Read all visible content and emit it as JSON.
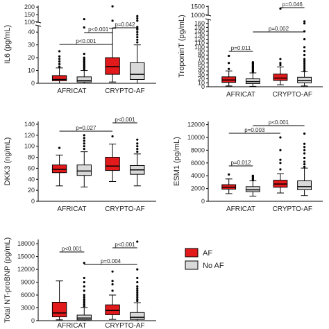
{
  "groups": [
    "AFRICAT",
    "CRYPTO-AF"
  ],
  "legend": {
    "items": [
      {
        "label": "AF",
        "color": "#e31a1c"
      },
      {
        "label": "No AF",
        "color": "#d9d9d9"
      }
    ]
  },
  "chart_data": [
    {
      "type": "box",
      "ylabel": "IL6 (pg/mL)",
      "categories": [
        "AFRICAT",
        "CRYPTO-AF"
      ],
      "yticks_lower": [
        0,
        10,
        20,
        30,
        40
      ],
      "yticks_upper": [
        100,
        150,
        200
      ],
      "axis_break": true,
      "ylim_lower": [
        0,
        45
      ],
      "ylim_upper": [
        100,
        210
      ],
      "series": [
        {
          "name": "AF",
          "boxes": [
            {
              "min": 0,
              "q1": 2,
              "median": 3,
              "q3": 6,
              "max": 12,
              "outliers": [
                13,
                15,
                17,
                19,
                21,
                25
              ]
            },
            {
              "min": 1,
              "q1": 7,
              "median": 13,
              "q3": 20,
              "max": 43,
              "outliers": [
                110,
                205
              ]
            }
          ]
        },
        {
          "name": "No AF",
          "boxes": [
            {
              "min": 0,
              "q1": 1,
              "median": 2,
              "q3": 5,
              "max": 10,
              "outliers": [
                11,
                12,
                13,
                14,
                15,
                16,
                17,
                18,
                19,
                20,
                23,
                65,
                120
              ]
            },
            {
              "min": 0,
              "q1": 3,
              "median": 7,
              "q3": 16,
              "max": 30,
              "outliers": [
                32,
                34,
                36,
                38,
                40,
                42,
                44,
                60,
                110,
                125,
                140
              ]
            }
          ]
        }
      ],
      "comparisons": [
        {
          "label": "p<0.001",
          "pair": "AFRICAT AF vs CRYPTO-AF AF"
        },
        {
          "label": "p<0.001",
          "pair": "AFRICAT No AF vs CRYPTO-AF AF"
        },
        {
          "label": "p=0.042",
          "pair": "CRYPTO-AF AF vs CRYPTO-AF No AF"
        }
      ]
    },
    {
      "type": "box",
      "ylabel": "TroponinT (pg/mL)",
      "categories": [
        "AFRICAT",
        "CRYPTO-AF"
      ],
      "yticks_lower": [
        0,
        10,
        20,
        30,
        40,
        50,
        60,
        70,
        80,
        90,
        100,
        110,
        120,
        130,
        140,
        150,
        160
      ],
      "yticks_upper": [
        1000,
        1500
      ],
      "axis_break": true,
      "ylim_lower": [
        0,
        170
      ],
      "ylim_upper": [
        1000,
        1550
      ],
      "series": [
        {
          "name": "AF",
          "boxes": [
            {
              "min": 2,
              "q1": 11,
              "median": 17,
              "q3": 25,
              "max": 40,
              "outliers": [
                45,
                60,
                78
              ]
            },
            {
              "min": 5,
              "q1": 16,
              "median": 22,
              "q3": 32,
              "max": 50,
              "outliers": [
                55,
                60,
                70,
                1380
              ]
            }
          ]
        },
        {
          "name": "No AF",
          "boxes": [
            {
              "min": 1,
              "q1": 8,
              "median": 13,
              "q3": 20,
              "max": 35,
              "outliers": [
                38,
                40,
                42,
                45,
                48,
                50,
                52,
                55,
                58,
                60,
                62
              ]
            },
            {
              "min": 2,
              "q1": 10,
              "median": 16,
              "q3": 24,
              "max": 38,
              "outliers": [
                40,
                45,
                50,
                55,
                60,
                65,
                70,
                80,
                90,
                100,
                120,
                140,
                160,
                165
              ]
            }
          ]
        }
      ],
      "comparisons": [
        {
          "label": "p=0.011",
          "pair": "AFRICAT AF vs AFRICAT No AF"
        },
        {
          "label": "p=0.002",
          "pair": "AFRICAT No AF vs CRYPTO-AF No AF"
        },
        {
          "label": "p=0.046",
          "pair": "CRYPTO-AF AF vs CRYPTO-AF No AF"
        }
      ]
    },
    {
      "type": "box",
      "ylabel": "DKK3 (ng/mL)",
      "categories": [
        "AFRICAT",
        "CRYPTO-AF"
      ],
      "yticks": [
        0,
        20,
        40,
        60,
        80,
        100,
        120,
        140
      ],
      "ylim": [
        0,
        145
      ],
      "series": [
        {
          "name": "AF",
          "boxes": [
            {
              "min": 28,
              "q1": 52,
              "median": 58,
              "q3": 66,
              "max": 84,
              "outliers": [
                97
              ]
            },
            {
              "min": 36,
              "q1": 56,
              "median": 64,
              "q3": 80,
              "max": 104,
              "outliers": [
                118
              ]
            }
          ]
        },
        {
          "name": "No AF",
          "boxes": [
            {
              "min": 26,
              "q1": 47,
              "median": 55,
              "q3": 66,
              "max": 90,
              "outliers": [
                95,
                100,
                105,
                110,
                115,
                120
              ]
            },
            {
              "min": 28,
              "q1": 49,
              "median": 57,
              "q3": 65,
              "max": 86,
              "outliers": [
                90,
                95,
                100,
                105,
                112
              ]
            }
          ]
        }
      ],
      "comparisons": [
        {
          "label": "p=0.027",
          "pair": "AFRICAT AF vs CRYPTO-AF AF"
        },
        {
          "label": "p<0.001",
          "pair": "CRYPTO-AF AF vs CRYPTO-AF No AF"
        }
      ]
    },
    {
      "type": "box",
      "ylabel": "ESM1 (pg/mL)",
      "categories": [
        "AFRICAT",
        "CRYPTO-AF"
      ],
      "yticks": [
        0,
        2000,
        4000,
        6000,
        8000,
        10000,
        12000
      ],
      "ylim": [
        0,
        12500
      ],
      "series": [
        {
          "name": "AF",
          "boxes": [
            {
              "min": 1200,
              "q1": 1900,
              "median": 2200,
              "q3": 2600,
              "max": 3500,
              "outliers": [
                4200
              ]
            },
            {
              "min": 1300,
              "q1": 2200,
              "median": 2700,
              "q3": 3300,
              "max": 4300,
              "outliers": [
                5000,
                6000,
                6500,
                8000,
                10000
              ]
            }
          ]
        },
        {
          "name": "No AF",
          "boxes": [
            {
              "min": 800,
              "q1": 1500,
              "median": 1800,
              "q3": 2300,
              "max": 3200,
              "outliers": [
                3300,
                3500,
                3700,
                3900,
                4000
              ]
            },
            {
              "min": 900,
              "q1": 1800,
              "median": 2300,
              "q3": 3200,
              "max": 5200,
              "outliers": [
                5400,
                5800,
                6200,
                6800,
                7500,
                8000,
                8500,
                9000,
                10600
              ]
            }
          ]
        }
      ],
      "comparisons": [
        {
          "label": "p=0.012",
          "pair": "AFRICAT AF vs AFRICAT No AF"
        },
        {
          "label": "p=0.003",
          "pair": "AFRICAT AF vs CRYPTO-AF AF"
        },
        {
          "label": "p<0.001",
          "pair": "AFRICAT No AF vs CRYPTO-AF No AF"
        }
      ]
    },
    {
      "type": "box",
      "ylabel": "Total NT-proBNP (pg/mL)",
      "categories": [
        "AFRICAT",
        "CRYPTO-AF"
      ],
      "yticks": [
        0,
        3000,
        6000,
        9000,
        12000,
        15000,
        18000
      ],
      "ylim": [
        0,
        19000
      ],
      "series": [
        {
          "name": "AF",
          "boxes": [
            {
              "min": 200,
              "q1": 900,
              "median": 1800,
              "q3": 4300,
              "max": 9300,
              "outliers": []
            },
            {
              "min": 300,
              "q1": 1400,
              "median": 2400,
              "q3": 3700,
              "max": 6000,
              "outliers": [
                7000,
                8500,
                9300,
                11500
              ]
            }
          ]
        },
        {
          "name": "No AF",
          "boxes": [
            {
              "min": 0,
              "q1": 200,
              "median": 600,
              "q3": 1300,
              "max": 3000,
              "outliers": [
                3400,
                3800,
                4200,
                4600,
                5000,
                5500,
                6000,
                7000,
                8000,
                9000,
                10000,
                13500
              ]
            },
            {
              "min": 0,
              "q1": 300,
              "median": 800,
              "q3": 1900,
              "max": 4200,
              "outliers": [
                4600,
                5000,
                5500,
                6000,
                6500,
                7000,
                7500,
                8000,
                9000,
                10000,
                12000,
                18500
              ]
            }
          ]
        }
      ],
      "comparisons": [
        {
          "label": "p<0.001",
          "pair": "AFRICAT AF vs AFRICAT No AF"
        },
        {
          "label": "p<0.001",
          "pair": "CRYPTO-AF AF vs CRYPTO-AF No AF"
        },
        {
          "label": "p=0.004",
          "pair": "AFRICAT No AF vs CRYPTO-AF No AF"
        }
      ]
    }
  ]
}
